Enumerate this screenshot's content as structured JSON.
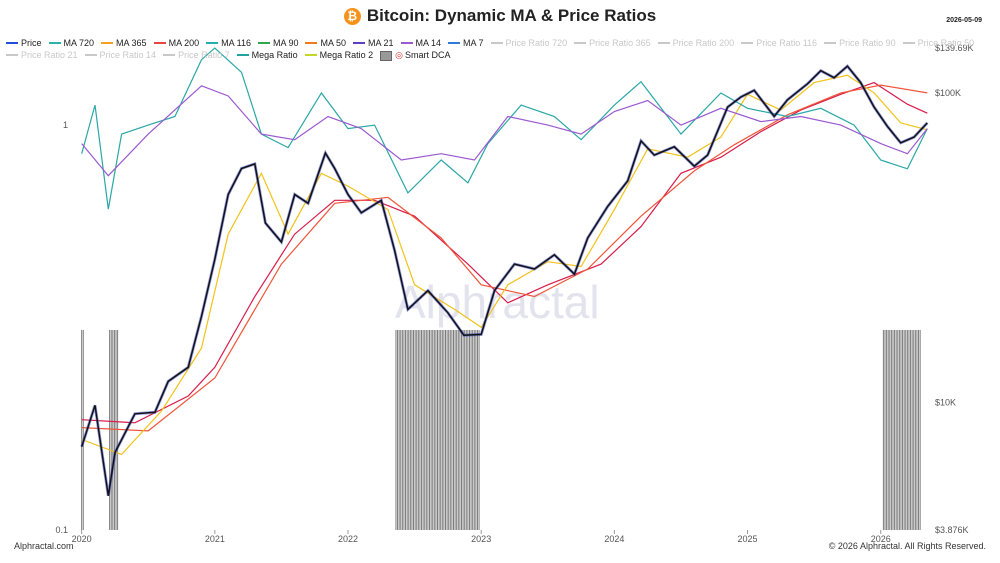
{
  "header": {
    "title": "Bitcoin: Dynamic MA & Price Ratios",
    "btc_symbol": "₿",
    "date": "2026-05-09"
  },
  "footer": {
    "left": "Alphractal.com",
    "right": "© 2026 Alphractal. All Rights Reserved."
  },
  "watermark": "Alphractal",
  "legend": [
    {
      "label": "Price",
      "color": "#1f4fd8",
      "active": true
    },
    {
      "label": "MA 720",
      "color": "#2bb3a8",
      "active": true
    },
    {
      "label": "MA 365",
      "color": "#f4a025",
      "active": true
    },
    {
      "label": "MA 200",
      "color": "#e8463b",
      "active": true
    },
    {
      "label": "MA 116",
      "color": "#1fb0b0",
      "active": true
    },
    {
      "label": "MA 90",
      "color": "#2fa84f",
      "active": true
    },
    {
      "label": "MA 50",
      "color": "#f07a1c",
      "active": true
    },
    {
      "label": "MA 21",
      "color": "#5b3fc4",
      "active": true
    },
    {
      "label": "MA 14",
      "color": "#9b59d0",
      "active": true
    },
    {
      "label": "MA 7",
      "color": "#2f7ad8",
      "active": true
    },
    {
      "label": "Price Ratio 720",
      "color": "#c8c8c8",
      "active": false
    },
    {
      "label": "Price Ratio 365",
      "color": "#c8c8c8",
      "active": false
    },
    {
      "label": "Price Ratio 200",
      "color": "#c8c8c8",
      "active": false
    },
    {
      "label": "Price Ratio 116",
      "color": "#c8c8c8",
      "active": false
    },
    {
      "label": "Price Ratio 90",
      "color": "#c8c8c8",
      "active": false
    },
    {
      "label": "Price Ratio 50",
      "color": "#c8c8c8",
      "active": false
    },
    {
      "label": "Price Ratio 21",
      "color": "#c8c8c8",
      "active": false
    },
    {
      "label": "Price Ratio 14",
      "color": "#c8c8c8",
      "active": false
    },
    {
      "label": "Price Ratio 7",
      "color": "#c8c8c8",
      "active": false
    },
    {
      "label": "Mega Ratio",
      "color": "#1fa3a3",
      "active": true
    },
    {
      "label": "Mega Ratio 2",
      "color": "#c4d62a",
      "active": true
    },
    {
      "label": "Smart DCA",
      "color": "#888888",
      "active": true,
      "kind": "box"
    }
  ],
  "chart_data": {
    "type": "line",
    "scale": "log",
    "x_ticks": [
      "2020",
      "2021",
      "2022",
      "2023",
      "2024",
      "2025",
      "2026"
    ],
    "x_range": [
      2019.95,
      2026.37
    ],
    "y_right_ticks": [
      "$139.69K",
      "$100K",
      "$10K",
      "$3.876K"
    ],
    "y_right_values": [
      139690,
      100000,
      10000,
      3876
    ],
    "y_right_range": [
      3876,
      139690
    ],
    "y_left_ticks": [
      "1",
      "0.1"
    ],
    "y_left_values": [
      1,
      0.1
    ],
    "y_left_range": [
      0.1,
      1.55
    ],
    "price": [
      [
        2020.0,
        7200
      ],
      [
        2020.1,
        9800
      ],
      [
        2020.2,
        5000
      ],
      [
        2020.25,
        6900
      ],
      [
        2020.4,
        9200
      ],
      [
        2020.55,
        9300
      ],
      [
        2020.65,
        11700
      ],
      [
        2020.8,
        13000
      ],
      [
        2020.9,
        19000
      ],
      [
        2021.0,
        29000
      ],
      [
        2021.1,
        47000
      ],
      [
        2021.2,
        57000
      ],
      [
        2021.3,
        59000
      ],
      [
        2021.38,
        38000
      ],
      [
        2021.5,
        33000
      ],
      [
        2021.6,
        47000
      ],
      [
        2021.7,
        44000
      ],
      [
        2021.83,
        64000
      ],
      [
        2021.9,
        57000
      ],
      [
        2022.0,
        47000
      ],
      [
        2022.1,
        41000
      ],
      [
        2022.25,
        45000
      ],
      [
        2022.35,
        31000
      ],
      [
        2022.45,
        20000
      ],
      [
        2022.6,
        23000
      ],
      [
        2022.75,
        19500
      ],
      [
        2022.87,
        16500
      ],
      [
        2023.0,
        16600
      ],
      [
        2023.1,
        23000
      ],
      [
        2023.25,
        28000
      ],
      [
        2023.4,
        27000
      ],
      [
        2023.55,
        30000
      ],
      [
        2023.7,
        26000
      ],
      [
        2023.8,
        34000
      ],
      [
        2023.95,
        43000
      ],
      [
        2024.1,
        52000
      ],
      [
        2024.2,
        70000
      ],
      [
        2024.3,
        63000
      ],
      [
        2024.45,
        67000
      ],
      [
        2024.6,
        58000
      ],
      [
        2024.7,
        63000
      ],
      [
        2024.85,
        90000
      ],
      [
        2024.95,
        97000
      ],
      [
        2025.05,
        102000
      ],
      [
        2025.2,
        84000
      ],
      [
        2025.3,
        95000
      ],
      [
        2025.45,
        107000
      ],
      [
        2025.55,
        118000
      ],
      [
        2025.65,
        112000
      ],
      [
        2025.75,
        122000
      ],
      [
        2025.85,
        108000
      ],
      [
        2025.95,
        90000
      ],
      [
        2026.05,
        78000
      ],
      [
        2026.15,
        69000
      ],
      [
        2026.25,
        72000
      ],
      [
        2026.35,
        80000
      ]
    ],
    "series": [
      {
        "name": "MA 200",
        "values": [
          [
            2020.0,
            8800
          ],
          [
            2020.4,
            8600
          ],
          [
            2020.8,
            10500
          ],
          [
            2021.0,
            13000
          ],
          [
            2021.3,
            22000
          ],
          [
            2021.6,
            35000
          ],
          [
            2021.9,
            45000
          ],
          [
            2022.2,
            45000
          ],
          [
            2022.5,
            40000
          ],
          [
            2022.9,
            28000
          ],
          [
            2023.2,
            21000
          ],
          [
            2023.5,
            24000
          ],
          [
            2023.9,
            28000
          ],
          [
            2024.2,
            37000
          ],
          [
            2024.5,
            55000
          ],
          [
            2024.8,
            62000
          ],
          [
            2025.1,
            75000
          ],
          [
            2025.4,
            88000
          ],
          [
            2025.7,
            99000
          ],
          [
            2025.95,
            108000
          ],
          [
            2026.2,
            92000
          ],
          [
            2026.35,
            86000
          ]
        ]
      },
      {
        "name": "MA 365",
        "values": [
          [
            2020.0,
            8300
          ],
          [
            2020.5,
            8100
          ],
          [
            2021.0,
            12000
          ],
          [
            2021.5,
            28000
          ],
          [
            2021.9,
            44000
          ],
          [
            2022.3,
            46000
          ],
          [
            2022.7,
            34000
          ],
          [
            2023.0,
            24000
          ],
          [
            2023.4,
            22000
          ],
          [
            2023.8,
            27000
          ],
          [
            2024.2,
            40000
          ],
          [
            2024.6,
            56000
          ],
          [
            2024.9,
            68000
          ],
          [
            2025.3,
            85000
          ],
          [
            2025.7,
            100000
          ],
          [
            2026.0,
            106000
          ],
          [
            2026.35,
            100000
          ]
        ]
      },
      {
        "name": "MA 50",
        "values": [
          [
            2020.0,
            7600
          ],
          [
            2020.3,
            6800
          ],
          [
            2020.6,
            9400
          ],
          [
            2020.9,
            15000
          ],
          [
            2021.1,
            35000
          ],
          [
            2021.35,
            55000
          ],
          [
            2021.55,
            35000
          ],
          [
            2021.8,
            55000
          ],
          [
            2022.0,
            50000
          ],
          [
            2022.3,
            42000
          ],
          [
            2022.5,
            24000
          ],
          [
            2022.8,
            20000
          ],
          [
            2023.0,
            17500
          ],
          [
            2023.2,
            24000
          ],
          [
            2023.5,
            28500
          ],
          [
            2023.75,
            27500
          ],
          [
            2024.0,
            42000
          ],
          [
            2024.25,
            66000
          ],
          [
            2024.55,
            62000
          ],
          [
            2024.8,
            72000
          ],
          [
            2025.0,
            99000
          ],
          [
            2025.25,
            88000
          ],
          [
            2025.5,
            108000
          ],
          [
            2025.75,
            114000
          ],
          [
            2025.95,
            100000
          ],
          [
            2026.15,
            80000
          ],
          [
            2026.35,
            76000
          ]
        ]
      },
      {
        "name": "Mega Ratio",
        "values": [
          [
            2020.0,
            0.85
          ],
          [
            2020.1,
            1.12
          ],
          [
            2020.2,
            0.62
          ],
          [
            2020.3,
            0.95
          ],
          [
            2020.5,
            1.0
          ],
          [
            2020.7,
            1.05
          ],
          [
            2020.9,
            1.45
          ],
          [
            2021.0,
            1.55
          ],
          [
            2021.2,
            1.35
          ],
          [
            2021.35,
            0.95
          ],
          [
            2021.55,
            0.88
          ],
          [
            2021.8,
            1.2
          ],
          [
            2022.0,
            0.98
          ],
          [
            2022.2,
            1.0
          ],
          [
            2022.45,
            0.68
          ],
          [
            2022.7,
            0.82
          ],
          [
            2022.9,
            0.72
          ],
          [
            2023.05,
            0.9
          ],
          [
            2023.3,
            1.12
          ],
          [
            2023.55,
            1.05
          ],
          [
            2023.75,
            0.92
          ],
          [
            2024.0,
            1.12
          ],
          [
            2024.2,
            1.28
          ],
          [
            2024.5,
            0.95
          ],
          [
            2024.8,
            1.2
          ],
          [
            2025.0,
            1.1
          ],
          [
            2025.3,
            1.05
          ],
          [
            2025.55,
            1.1
          ],
          [
            2025.8,
            1.0
          ],
          [
            2026.0,
            0.82
          ],
          [
            2026.2,
            0.78
          ],
          [
            2026.35,
            0.98
          ]
        ]
      },
      {
        "name": "MA 14 ratio",
        "values": [
          [
            2020.0,
            0.9
          ],
          [
            2020.2,
            0.75
          ],
          [
            2020.5,
            0.95
          ],
          [
            2020.9,
            1.25
          ],
          [
            2021.1,
            1.18
          ],
          [
            2021.35,
            0.95
          ],
          [
            2021.6,
            0.92
          ],
          [
            2021.85,
            1.05
          ],
          [
            2022.1,
            0.98
          ],
          [
            2022.4,
            0.82
          ],
          [
            2022.7,
            0.85
          ],
          [
            2022.95,
            0.82
          ],
          [
            2023.2,
            1.05
          ],
          [
            2023.5,
            1.0
          ],
          [
            2023.75,
            0.95
          ],
          [
            2024.0,
            1.08
          ],
          [
            2024.25,
            1.15
          ],
          [
            2024.5,
            1.0
          ],
          [
            2024.8,
            1.1
          ],
          [
            2025.1,
            1.02
          ],
          [
            2025.4,
            1.05
          ],
          [
            2025.7,
            1.0
          ],
          [
            2026.0,
            0.9
          ],
          [
            2026.2,
            0.85
          ],
          [
            2026.35,
            0.98
          ]
        ]
      }
    ],
    "smart_dca_dates": [
      [
        2020.0,
        2020.02
      ],
      [
        2020.21,
        2020.28
      ],
      [
        2022.36,
        2022.99
      ],
      [
        2026.02,
        2026.3
      ]
    ]
  }
}
